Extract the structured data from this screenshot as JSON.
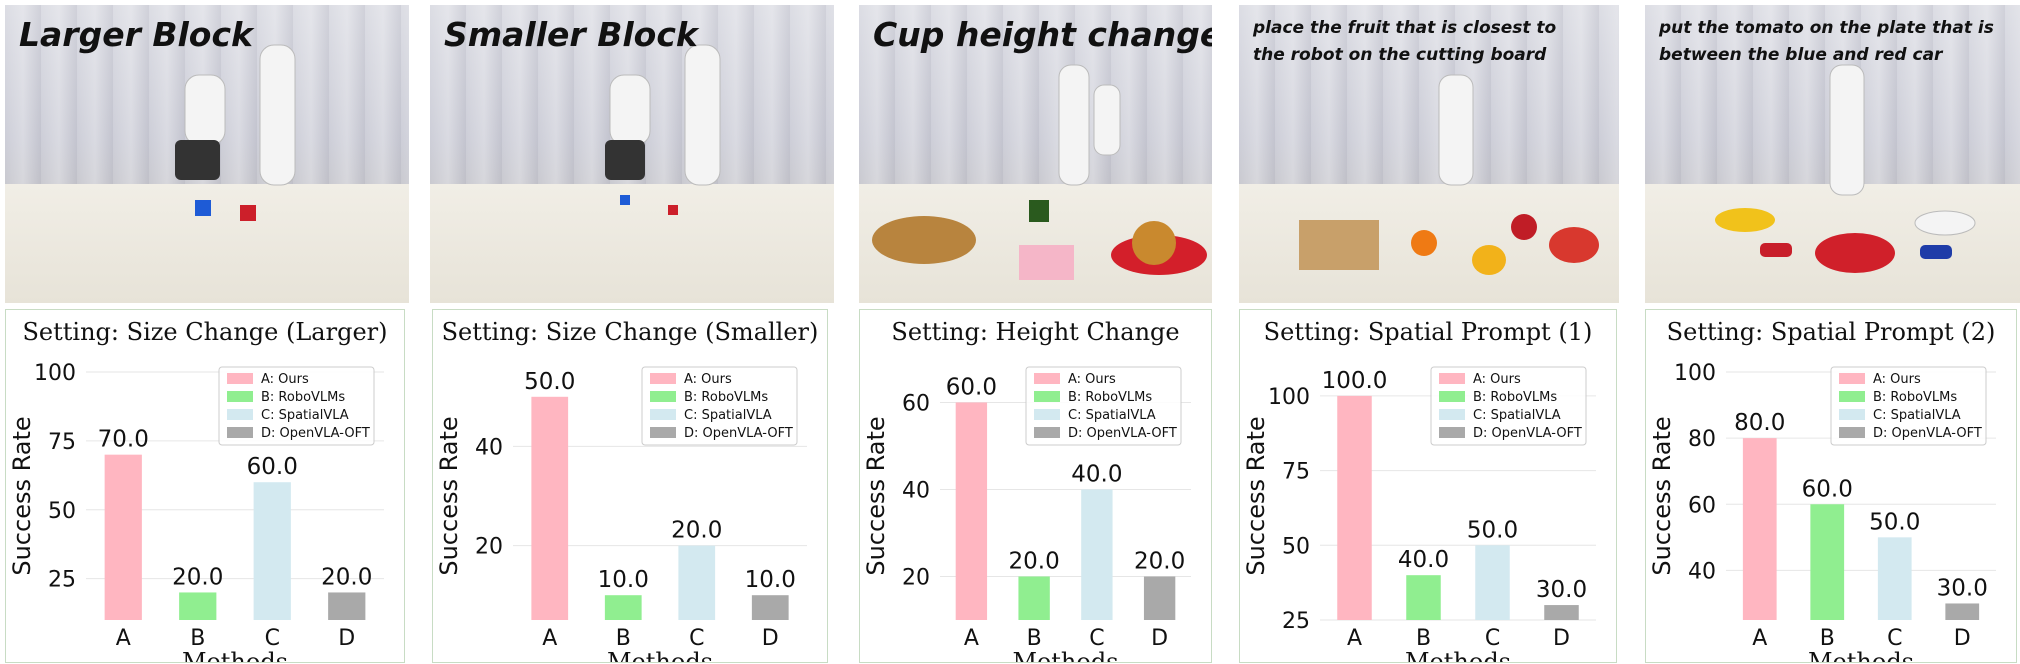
{
  "panels": [
    {
      "caption": "Larger Block",
      "caption_style": "big"
    },
    {
      "caption": "Smaller Block",
      "caption_style": "big"
    },
    {
      "caption": "Cup height change",
      "caption_style": "big"
    },
    {
      "caption": "place the fruit that is closest to the robot on the cutting board",
      "caption_style": "small"
    },
    {
      "caption": "put the tomato on the plate that is between the blue and red car",
      "caption_style": "small"
    }
  ],
  "colors": {
    "A": "#ffb6c1",
    "B": "#90ee90",
    "C": "#d3e9f0",
    "D": "#a9a9a9"
  },
  "chart_data": [
    {
      "type": "bar",
      "title": "Setting: Size Change (Larger)",
      "xlabel": "Methods",
      "ylabel": "Success Rate",
      "categories": [
        "A",
        "B",
        "C",
        "D"
      ],
      "values": [
        70.0,
        20.0,
        60.0,
        20.0
      ],
      "value_labels": [
        "70.0",
        "20.0",
        "60.0",
        "20.0"
      ],
      "ylim": [
        10,
        100
      ],
      "yticks": [
        25,
        50,
        75,
        100
      ],
      "legend": [
        "A: Ours",
        "B: RoboVLMs",
        "C: SpatialVLA",
        "D: OpenVLA-OFT"
      ],
      "legend_position": "top-right",
      "grid": true
    },
    {
      "type": "bar",
      "title": "Setting: Size Change (Smaller)",
      "xlabel": "Methods",
      "ylabel": "Success Rate",
      "categories": [
        "A",
        "B",
        "C",
        "D"
      ],
      "values": [
        50.0,
        10.0,
        20.0,
        10.0
      ],
      "value_labels": [
        "50.0",
        "10.0",
        "20.0",
        "10.0"
      ],
      "ylim": [
        5,
        55
      ],
      "yticks": [
        20,
        40
      ],
      "legend": [
        "A: Ours",
        "B: RoboVLMs",
        "C: SpatialVLA",
        "D: OpenVLA-OFT"
      ],
      "legend_position": "top-right",
      "grid": true
    },
    {
      "type": "bar",
      "title": "Setting: Height Change",
      "xlabel": "Methods",
      "ylabel": "Success Rate",
      "categories": [
        "A",
        "B",
        "C",
        "D"
      ],
      "values": [
        60.0,
        20.0,
        40.0,
        20.0
      ],
      "value_labels": [
        "60.0",
        "20.0",
        "40.0",
        "20.0"
      ],
      "ylim": [
        10,
        67
      ],
      "yticks": [
        20,
        40,
        60
      ],
      "legend": [
        "A: Ours",
        "B: RoboVLMs",
        "C: SpatialVLA",
        "D: OpenVLA-OFT"
      ],
      "legend_position": "top-right",
      "grid": true
    },
    {
      "type": "bar",
      "title": "Setting: Spatial Prompt (1)",
      "xlabel": "Methods",
      "ylabel": "Success Rate",
      "categories": [
        "A",
        "B",
        "C",
        "D"
      ],
      "values": [
        100.0,
        40.0,
        50.0,
        30.0
      ],
      "value_labels": [
        "100.0",
        "40.0",
        "50.0",
        "30.0"
      ],
      "ylim": [
        25,
        108
      ],
      "yticks": [
        25,
        50,
        75,
        100
      ],
      "legend": [
        "A: Ours",
        "B: RoboVLMs",
        "C: SpatialVLA",
        "D: OpenVLA-OFT"
      ],
      "legend_position": "top-right",
      "grid": true
    },
    {
      "type": "bar",
      "title": "Setting: Spatial Prompt (2)",
      "xlabel": "Methods",
      "ylabel": "Success Rate",
      "categories": [
        "A",
        "B",
        "C",
        "D"
      ],
      "values": [
        80.0,
        60.0,
        50.0,
        30.0
      ],
      "value_labels": [
        "80.0",
        "60.0",
        "50.0",
        "30.0"
      ],
      "ylim": [
        25,
        100
      ],
      "yticks": [
        40,
        60,
        80,
        100
      ],
      "legend": [
        "A: Ours",
        "B: RoboVLMs",
        "C: SpatialVLA",
        "D: OpenVLA-OFT"
      ],
      "legend_position": "top-right",
      "grid": true
    }
  ]
}
